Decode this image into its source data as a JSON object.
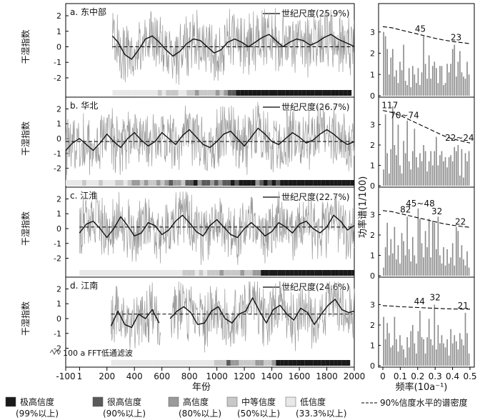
{
  "chart_data": [
    {
      "type": "line",
      "panel": "a",
      "title": "a. 东中部",
      "legend": "世纪尺度(25.9%)",
      "ylabel": "干湿指数",
      "ylim": [
        -2.6,
        2.6
      ],
      "yticks": [
        "-2",
        "-1",
        "0",
        "1",
        "2"
      ],
      "x_range": [
        -100,
        2000
      ],
      "data_start_year": 240,
      "mean_line": 0.0,
      "century_scale_curve": {
        "x": [
          240,
          280,
          330,
          380,
          430,
          480,
          530,
          580,
          630,
          680,
          730,
          780,
          830,
          880,
          930,
          980,
          1030,
          1080,
          1130,
          1180,
          1230,
          1280,
          1330,
          1380,
          1430,
          1480,
          1530,
          1580,
          1630,
          1680,
          1730,
          1780,
          1830,
          1880,
          1930,
          1980,
          2000
        ],
        "y": [
          0.7,
          0.3,
          -0.5,
          -0.8,
          -0.2,
          0.5,
          0.7,
          0.3,
          -0.2,
          -0.6,
          -0.3,
          0.2,
          0.5,
          0.4,
          0.0,
          -0.4,
          -0.2,
          0.3,
          0.5,
          0.3,
          0.0,
          0.3,
          0.6,
          0.8,
          0.4,
          0.0,
          0.3,
          0.5,
          0.4,
          0.1,
          0.3,
          0.6,
          0.8,
          0.5,
          0.3,
          0.1,
          0.0
        ]
      },
      "confidence_bar": {
        "start_year": 240,
        "levels": [
          4,
          4,
          4,
          4,
          4,
          4,
          4,
          4,
          4,
          4,
          4,
          3,
          4,
          3,
          3,
          3,
          4,
          4,
          3,
          3,
          2,
          3,
          3,
          3,
          3,
          2,
          3,
          2,
          1,
          1,
          0,
          0,
          0,
          0,
          0,
          0,
          0,
          0,
          0,
          0,
          0,
          0,
          0,
          0,
          0,
          0,
          0,
          0,
          0,
          0,
          0,
          0,
          0,
          0,
          0,
          0,
          0,
          0
        ]
      },
      "spectrum": {
        "ylim": [
          0,
          4
        ],
        "yticks": [
          "0",
          "1",
          "2",
          "3"
        ],
        "values": [
          3.0,
          2.8,
          2.2,
          1.0,
          1.8,
          2.2,
          0.9,
          1.2,
          0.6,
          1.6,
          1.2,
          2.4,
          0.7,
          0.5,
          1.3,
          0.4,
          1.4,
          1.0,
          0.6,
          1.3,
          0.5,
          1.1,
          2.8,
          1.5,
          0.8,
          1.9,
          0.8,
          1.4,
          1.6,
          1.3,
          0.6,
          1.4,
          1.4,
          0.5,
          0.6,
          1.5,
          1.1,
          1.5,
          2.2,
          2.4,
          0.9,
          1.6,
          2.1,
          1.1,
          0.9,
          0.8,
          1.6,
          1.0
        ],
        "significance": [
          3.25,
          3.2,
          3.1,
          3.0,
          2.9,
          2.8,
          2.7,
          2.62,
          2.55,
          2.5,
          2.45
        ],
        "peaks": [
          {
            "label": "45",
            "x": 0.215,
            "y": 2.8
          },
          {
            "label": "23",
            "x": 0.42,
            "y": 2.4
          }
        ]
      }
    },
    {
      "type": "line",
      "panel": "b",
      "title": "b. 华北",
      "legend": "世纪尺度(26.7%)",
      "ylabel": "干湿指数",
      "ylim": [
        -2.6,
        2.6
      ],
      "yticks": [
        "-2",
        "-1",
        "0",
        "1",
        "2"
      ],
      "x_range": [
        -100,
        2000
      ],
      "data_start_year": -100,
      "mean_line": -0.2,
      "century_scale_curve": {
        "x": [
          -100,
          -50,
          0,
          50,
          100,
          150,
          200,
          250,
          300,
          350,
          400,
          450,
          500,
          550,
          600,
          650,
          700,
          750,
          800,
          850,
          900,
          950,
          1000,
          1050,
          1100,
          1150,
          1200,
          1250,
          1300,
          1350,
          1400,
          1450,
          1500,
          1550,
          1600,
          1650,
          1700,
          1750,
          1800,
          1850,
          1900,
          1950,
          2000
        ],
        "y": [
          -0.8,
          -0.3,
          0.0,
          -0.4,
          -0.8,
          -0.3,
          0.3,
          -0.2,
          -0.6,
          0.0,
          0.4,
          -0.1,
          -0.5,
          -0.2,
          0.4,
          0.0,
          -0.4,
          0.2,
          0.6,
          0.1,
          -0.4,
          -0.6,
          -0.2,
          0.3,
          0.5,
          0.0,
          -0.5,
          0.1,
          0.7,
          0.3,
          -0.2,
          -0.4,
          0.0,
          0.4,
          0.1,
          -0.3,
          -0.1,
          0.3,
          0.6,
          0.3,
          -0.1,
          -0.4,
          -0.2
        ]
      },
      "confidence_bar": {
        "start_year": -100,
        "levels": [
          4,
          4,
          4,
          4,
          3,
          4,
          4,
          4,
          3,
          4,
          4,
          4,
          3,
          3,
          4,
          3,
          2,
          2,
          3,
          2,
          3,
          3,
          2,
          3,
          2,
          1,
          2,
          2,
          3,
          1,
          1,
          0,
          2,
          1,
          1,
          2,
          1,
          2,
          1,
          1,
          0,
          1,
          0,
          0,
          0,
          0,
          2,
          1,
          0,
          1,
          0,
          1,
          0,
          0,
          0,
          0,
          0,
          0,
          0,
          0,
          0,
          0,
          0,
          0,
          0,
          0,
          0,
          0,
          0,
          0
        ]
      },
      "spectrum": {
        "ylim": [
          0,
          4
        ],
        "yticks": [
          "0",
          "1",
          "2",
          "3"
        ],
        "values": [
          0.8,
          3.5,
          1.6,
          0.6,
          1.8,
          3.9,
          2.0,
          1.5,
          3.0,
          1.0,
          0.6,
          2.2,
          1.6,
          3.2,
          1.2,
          0.8,
          1.7,
          2.8,
          1.4,
          0.9,
          1.6,
          1.2,
          2.0,
          1.7,
          0.7,
          1.2,
          1.7,
          1.0,
          1.7,
          2.4,
          1.0,
          1.5,
          1.7,
          1.2,
          1.4,
          0.9,
          1.4,
          1.5,
          1.2,
          1.9,
          1.7,
          2.0,
          0.5,
          1.8,
          0.4,
          1.6,
          1.2,
          1.7
        ],
        "significance": [
          3.7,
          3.6,
          3.45,
          3.25,
          3.05,
          2.85,
          2.65,
          2.45,
          2.3,
          2.2,
          2.1
        ],
        "peaks": [
          {
            "label": "117",
            "x": 0.04,
            "y": 3.6
          },
          {
            "label": "70~74",
            "x": 0.125,
            "y": 3.1
          },
          {
            "label": "22~24",
            "x": 0.44,
            "y": 2.0
          }
        ]
      }
    },
    {
      "type": "line",
      "panel": "c",
      "title": "c. 江淮",
      "legend": "世纪尺度(22.7%)",
      "ylabel": "干湿指数",
      "ylim": [
        -2.6,
        2.6
      ],
      "yticks": [
        "-2",
        "-1",
        "0",
        "1",
        "2"
      ],
      "x_range": [
        -100,
        2000
      ],
      "data_start_year": 0,
      "mean_line": 0.1,
      "century_scale_curve": {
        "x": [
          0,
          50,
          100,
          150,
          200,
          250,
          300,
          350,
          400,
          450,
          500,
          550,
          600,
          650,
          700,
          750,
          800,
          850,
          900,
          950,
          1000,
          1050,
          1100,
          1150,
          1200,
          1250,
          1300,
          1350,
          1400,
          1450,
          1500,
          1550,
          1600,
          1650,
          1700,
          1750,
          1800,
          1850,
          1900,
          1950,
          2000
        ],
        "y": [
          -0.3,
          0.3,
          0.5,
          0.0,
          -0.6,
          0.0,
          0.8,
          0.2,
          -0.5,
          -0.3,
          0.4,
          0.2,
          -0.4,
          -0.1,
          0.5,
          0.9,
          0.4,
          -0.2,
          -0.5,
          0.2,
          0.6,
          0.1,
          -0.4,
          -0.6,
          0.0,
          0.4,
          0.0,
          -0.5,
          -0.2,
          0.4,
          0.1,
          -0.3,
          0.3,
          0.5,
          0.0,
          -0.3,
          0.1,
          0.9,
          0.5,
          -0.1,
          0.2
        ]
      },
      "confidence_bar": {
        "start_year": 0,
        "levels": [
          4,
          4,
          4,
          4,
          4,
          4,
          4,
          4,
          4,
          4,
          4,
          4,
          4,
          4,
          4,
          4,
          4,
          4,
          4,
          4,
          4,
          4,
          4,
          4,
          4,
          3,
          3,
          3,
          4,
          3,
          4,
          3,
          3,
          3,
          2,
          3,
          3,
          3,
          3,
          2,
          3,
          3,
          2,
          2,
          0,
          0,
          0,
          0,
          0,
          0,
          0,
          0,
          0,
          0,
          0,
          0,
          0,
          0,
          0,
          0,
          0,
          0,
          0,
          0,
          0,
          0,
          0,
          0,
          0,
          0
        ]
      },
      "spectrum": {
        "ylim": [
          0,
          4
        ],
        "yticks": [
          "0",
          "1",
          "2",
          "3"
        ],
        "values": [
          0.4,
          1.4,
          2.6,
          1.0,
          1.8,
          1.1,
          2.4,
          0.8,
          1.5,
          0.6,
          2.1,
          1.7,
          1.0,
          2.9,
          1.3,
          0.7,
          1.9,
          1.0,
          0.6,
          3.3,
          2.8,
          1.6,
          0.9,
          2.2,
          1.4,
          2.8,
          0.9,
          2.7,
          2.6,
          1.3,
          2.9,
          1.0,
          0.6,
          1.4,
          0.5,
          1.3,
          0.6,
          0.9,
          1.6,
          0.5,
          2.4,
          2.2,
          0.9,
          1.5,
          0.8,
          0.5,
          1.2,
          0.4
        ],
        "significance": [
          3.2,
          3.15,
          3.05,
          2.95,
          2.85,
          2.75,
          2.65,
          2.55,
          2.48,
          2.42,
          2.38
        ],
        "peaks": [
          {
            "label": "82",
            "x": 0.13,
            "y": 2.9
          },
          {
            "label": "45~48",
            "x": 0.215,
            "y": 3.2
          },
          {
            "label": "32",
            "x": 0.31,
            "y": 2.8
          },
          {
            "label": "22",
            "x": 0.445,
            "y": 2.3
          }
        ]
      }
    },
    {
      "type": "line",
      "panel": "d",
      "title": "d. 江南",
      "legend": "世纪尺度(24.6%)",
      "ylabel": "干湿指数",
      "ylim": [
        -2.6,
        2.6
      ],
      "yticks": [
        "-2",
        "-1",
        "0",
        "1",
        "2"
      ],
      "x_range": [
        -100,
        2000
      ],
      "data_start_year": 230,
      "gap": [
        590,
        660
      ],
      "mean_line": 0.3,
      "filter_note": "100 a FFT低通滤波",
      "century_scale_curve": {
        "x": [
          230,
          280,
          330,
          380,
          430,
          480,
          530,
          580,
          660,
          710,
          760,
          810,
          860,
          910,
          960,
          1010,
          1060,
          1110,
          1160,
          1210,
          1260,
          1310,
          1360,
          1410,
          1460,
          1510,
          1560,
          1610,
          1660,
          1710,
          1760,
          1810,
          1860,
          1910,
          1960,
          2000
        ],
        "y": [
          -0.5,
          0.5,
          -0.4,
          -0.6,
          0.3,
          0.0,
          0.6,
          -0.3,
          0.0,
          0.5,
          0.8,
          0.4,
          -0.4,
          -0.3,
          0.5,
          0.8,
          0.0,
          -0.3,
          0.3,
          0.5,
          1.4,
          0.5,
          -0.3,
          0.6,
          0.9,
          0.3,
          -0.1,
          0.7,
          0.4,
          -0.4,
          0.3,
          0.9,
          1.3,
          0.6,
          0.4,
          0.5
        ]
      },
      "confidence_bar": {
        "start_year": 230,
        "levels": [
          4,
          4,
          4,
          4,
          4,
          4,
          4,
          4,
          4,
          4,
          4,
          4,
          4,
          4,
          4,
          4,
          4,
          4,
          4,
          4,
          4,
          4,
          4,
          4,
          4,
          3,
          3,
          3,
          1,
          2,
          2,
          3,
          3,
          3,
          3,
          2,
          2,
          3,
          3,
          2,
          0,
          0,
          0,
          0,
          0,
          0,
          0,
          0,
          0,
          0,
          0,
          0,
          0,
          0,
          0,
          0,
          0,
          0
        ]
      },
      "spectrum": {
        "ylim": [
          0,
          4
        ],
        "yticks": [
          "0",
          "1",
          "2",
          "3"
        ],
        "values": [
          2.4,
          1.3,
          2.1,
          1.6,
          0.9,
          1.0,
          2.4,
          1.3,
          0.7,
          1.5,
          1.0,
          0.8,
          0.4,
          1.4,
          0.9,
          1.7,
          2.0,
          1.1,
          0.6,
          1.7,
          2.7,
          1.4,
          1.3,
          0.6,
          1.4,
          2.3,
          1.3,
          1.0,
          3.0,
          0.8,
          2.0,
          1.1,
          1.5,
          1.1,
          0.9,
          1.3,
          0.5,
          1.8,
          1.1,
          1.5,
          1.2,
          0.8,
          1.6,
          1.3,
          1.0,
          2.6,
          1.6,
          0.6
        ],
        "significance": [
          2.95,
          2.93,
          2.9,
          2.88,
          2.86,
          2.84,
          2.82,
          2.8,
          2.79,
          2.78,
          2.78
        ],
        "peaks": [
          {
            "label": "44",
            "x": 0.21,
            "y": 2.8
          },
          {
            "label": "32",
            "x": 0.3,
            "y": 3.0
          },
          {
            "label": "21",
            "x": 0.46,
            "y": 2.6
          }
        ]
      }
    }
  ],
  "x_axis": {
    "label": "年份",
    "ticks": [
      "-100",
      "1",
      "200",
      "400",
      "600",
      "800",
      "1000",
      "1200",
      "1400",
      "1600",
      "1800",
      "2000"
    ]
  },
  "spectrum_axis": {
    "xlabel": "频率(10a⁻¹)",
    "ylabel": "功率谱(1/100)",
    "xticks": [
      "0",
      "0.1",
      "0.2",
      "0.3",
      "0.4",
      "0.5"
    ]
  },
  "legend": {
    "items": [
      {
        "label": "极高信度",
        "sub": "(99%以上)",
        "color": "#1a1a1a"
      },
      {
        "label": "很高信度",
        "sub": "(90%以上)",
        "color": "#5a5a5a"
      },
      {
        "label": "高信度",
        "sub": "(80%以上)",
        "color": "#9a9a9a"
      },
      {
        "label": "中等信度",
        "sub": "(50%以上)",
        "color": "#c8c8c8"
      },
      {
        "label": "低信度",
        "sub": "(33.3%以上)",
        "color": "#e8e8e8"
      }
    ],
    "dashed_label": "90%信度水平的谱密度"
  },
  "colors": {
    "series": "#9a9a9a",
    "smooth": "#111111",
    "bars": "#8c8c8c"
  }
}
